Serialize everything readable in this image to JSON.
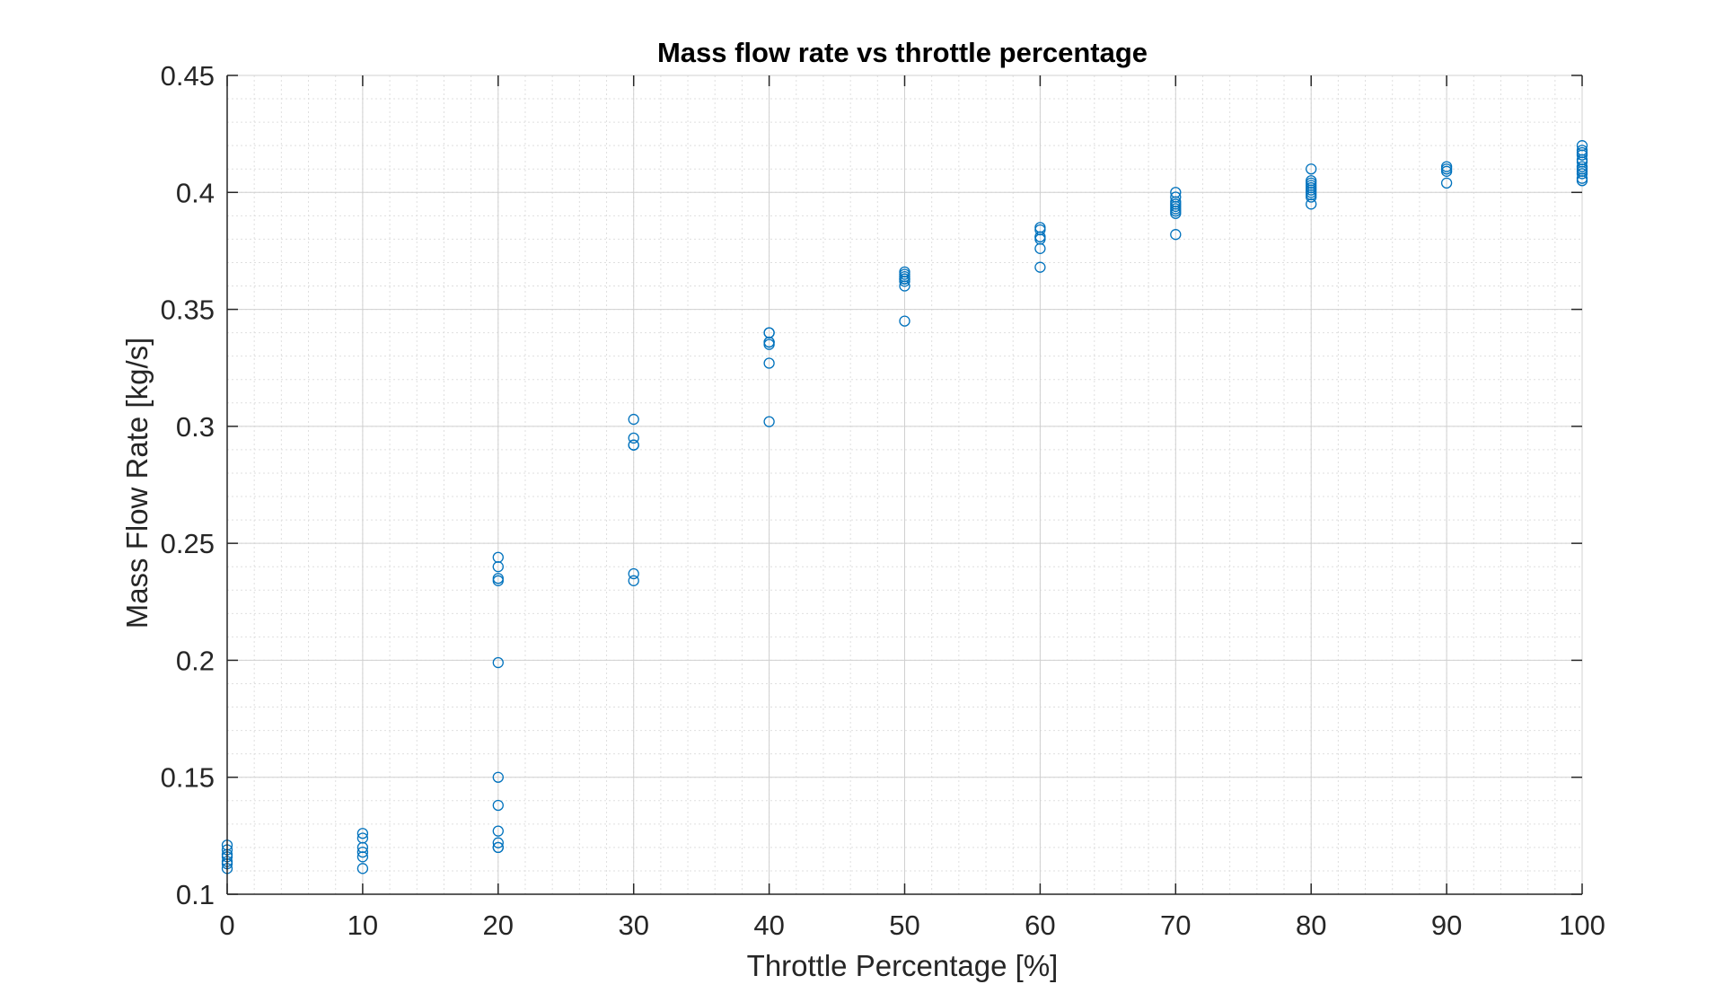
{
  "chart_data": {
    "type": "scatter",
    "title": "Mass flow rate vs throttle percentage",
    "xlabel": "Throttle Percentage [%]",
    "ylabel": "Mass Flow Rate [kg/s]",
    "xlim": [
      0,
      100
    ],
    "ylim": [
      0.1,
      0.45
    ],
    "xticks": [
      0,
      10,
      20,
      30,
      40,
      50,
      60,
      70,
      80,
      90,
      100
    ],
    "xtick_labels": [
      "0",
      "10",
      "20",
      "30",
      "40",
      "50",
      "60",
      "70",
      "80",
      "90",
      "100"
    ],
    "yticks": [
      0.1,
      0.15,
      0.2,
      0.25,
      0.3,
      0.35,
      0.4,
      0.45
    ],
    "ytick_labels": [
      "0.1",
      "0.15",
      "0.2",
      "0.25",
      "0.3",
      "0.35",
      "0.4",
      "0.45"
    ],
    "grid": "major and minor",
    "legend": "none",
    "marker": "open-circle",
    "marker_color": "#0072BD",
    "axis_color": "#262626",
    "grid_color": "#dfdfdf",
    "series": [
      {
        "x": [
          0,
          0,
          0,
          0,
          0,
          0,
          0,
          10,
          10,
          10,
          10,
          10,
          10,
          20,
          20,
          20,
          20,
          20,
          20,
          20,
          20,
          20,
          20,
          20,
          30,
          30,
          30,
          30,
          30,
          30,
          40,
          40,
          40,
          40,
          40,
          40,
          40,
          50,
          50,
          50,
          50,
          50,
          50,
          50,
          50,
          60,
          60,
          60,
          60,
          60,
          60,
          60,
          70,
          70,
          70,
          70,
          70,
          70,
          70,
          70,
          70,
          80,
          80,
          80,
          80,
          80,
          80,
          80,
          80,
          80,
          80,
          90,
          90,
          90,
          90,
          100,
          100,
          100,
          100,
          100,
          100,
          100,
          100,
          100,
          100,
          100,
          100
        ],
        "y": [
          0.121,
          0.119,
          0.117,
          0.116,
          0.114,
          0.113,
          0.111,
          0.126,
          0.124,
          0.12,
          0.118,
          0.116,
          0.111,
          0.244,
          0.24,
          0.235,
          0.234,
          0.199,
          0.15,
          0.138,
          0.127,
          0.122,
          0.12,
          0.12,
          0.303,
          0.295,
          0.292,
          0.292,
          0.237,
          0.234,
          0.34,
          0.34,
          0.336,
          0.336,
          0.335,
          0.327,
          0.302,
          0.366,
          0.365,
          0.364,
          0.363,
          0.363,
          0.362,
          0.36,
          0.345,
          0.385,
          0.384,
          0.381,
          0.381,
          0.38,
          0.376,
          0.368,
          0.4,
          0.398,
          0.396,
          0.395,
          0.394,
          0.393,
          0.392,
          0.391,
          0.382,
          0.41,
          0.405,
          0.404,
          0.403,
          0.402,
          0.401,
          0.4,
          0.399,
          0.398,
          0.395,
          0.411,
          0.41,
          0.409,
          0.404,
          0.42,
          0.418,
          0.417,
          0.416,
          0.414,
          0.413,
          0.411,
          0.41,
          0.409,
          0.408,
          0.406,
          0.405
        ]
      }
    ]
  }
}
